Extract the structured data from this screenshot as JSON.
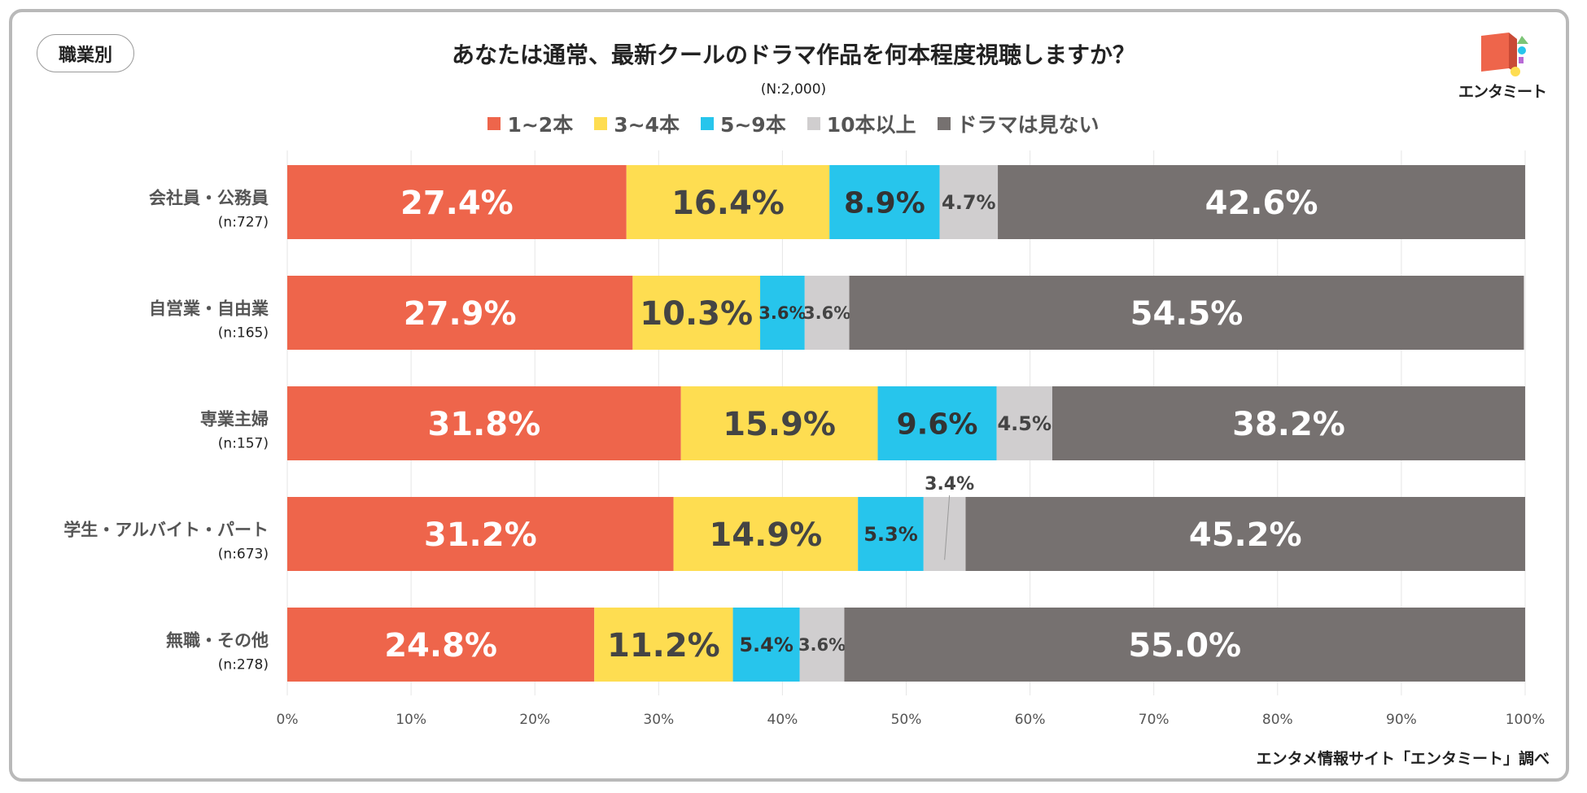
{
  "badge": "職業別",
  "title": "あなたは通常、最新クールのドラマ作品を何本程度視聴しますか？",
  "subtitle": "(N:2,000)",
  "source": "エンタメ情報サイト「エンタミート」調べ",
  "logo": {
    "text": "エンタミート",
    "icon": "book-logo-icon"
  },
  "colors": {
    "s1": "#ee654b",
    "s2": "#fedd51",
    "s3": "#27c5ec",
    "s4": "#d0cecf",
    "s5": "#767170"
  },
  "chart_data": {
    "type": "bar",
    "orientation": "horizontal",
    "stacked": true,
    "title": "あなたは通常、最新クールのドラマ作品を何本程度視聴しますか？",
    "subtitle": "(N:2,000)",
    "xlim": [
      0,
      100
    ],
    "x_ticks": [
      "0%",
      "10%",
      "20%",
      "30%",
      "40%",
      "50%",
      "60%",
      "70%",
      "80%",
      "90%",
      "100%"
    ],
    "legend_position": "top",
    "grid": true,
    "categories": [
      {
        "name": "会社員・公務員",
        "n": "(n:727)"
      },
      {
        "name": "自営業・自由業",
        "n": "(n:165)"
      },
      {
        "name": "専業主婦",
        "n": "(n:157)"
      },
      {
        "name": "学生・アルバイト・パート",
        "n": "(n:673)"
      },
      {
        "name": "無職・その他",
        "n": "(n:278)"
      }
    ],
    "series": [
      {
        "name": "1~2本",
        "values": [
          27.4,
          27.9,
          31.8,
          31.2,
          24.8
        ],
        "labels": [
          "27.4%",
          "27.9%",
          "31.8%",
          "31.2%",
          "24.8%"
        ]
      },
      {
        "name": "3~4本",
        "values": [
          16.4,
          10.3,
          15.9,
          14.9,
          11.2
        ],
        "labels": [
          "16.4%",
          "10.3%",
          "15.9%",
          "14.9%",
          "11.2%"
        ]
      },
      {
        "name": "5~9本",
        "values": [
          8.9,
          3.6,
          9.6,
          5.3,
          5.4
        ],
        "labels": [
          "8.9%",
          "3.6%",
          "9.6%",
          "5.3%",
          "5.4%"
        ]
      },
      {
        "name": "10本以上",
        "values": [
          4.7,
          3.6,
          4.5,
          3.4,
          3.6
        ],
        "labels": [
          "4.7%",
          "3.6%",
          "4.5%",
          "3.4%",
          "3.6%"
        ]
      },
      {
        "name": "ドラマは見ない",
        "values": [
          42.6,
          54.5,
          38.2,
          45.2,
          55.0
        ],
        "labels": [
          "42.6%",
          "54.5%",
          "38.2%",
          "45.2%",
          "55.0%"
        ]
      }
    ]
  }
}
